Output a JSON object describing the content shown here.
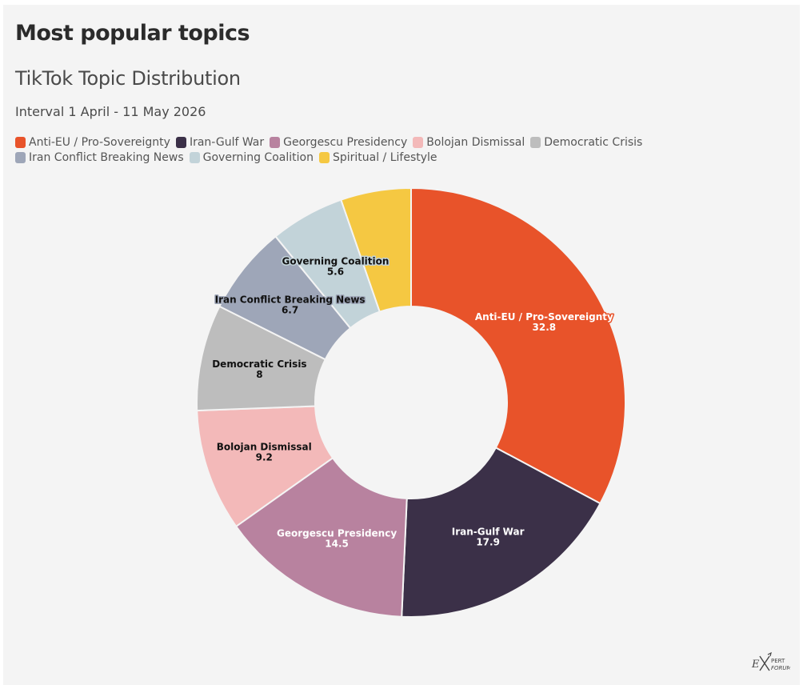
{
  "header": {
    "title": "Most popular topics",
    "subtitle": "TikTok Topic Distribution",
    "interval": "Interval 1 April - 11 May 2026"
  },
  "legend_position": "top-left",
  "chart_data": {
    "type": "pie",
    "donut": true,
    "title": "TikTok Topic Distribution",
    "slices": [
      {
        "name": "Anti-EU / Pro-Sovereignty",
        "value": 32.8,
        "value_label": "32.8",
        "color": "#e8532a",
        "text_color": "#ffffff",
        "stroke_color": "#e8532a"
      },
      {
        "name": "Iran-Gulf War",
        "value": 17.9,
        "value_label": "17.9",
        "color": "#3b3048",
        "text_color": "#ffffff",
        "stroke_color": "#3b3048"
      },
      {
        "name": "Georgescu Presidency",
        "value": 14.5,
        "value_label": "14.5",
        "color": "#b8829f",
        "text_color": "#ffffff",
        "stroke_color": "#b8829f"
      },
      {
        "name": "Bolojan Dismissal",
        "value": 9.2,
        "value_label": "9.2",
        "color": "#f3b9b9",
        "text_color": "#111111",
        "stroke_color": "#f3b9b9"
      },
      {
        "name": "Democratic Crisis",
        "value": 8,
        "value_label": "8",
        "color": "#bdbdbd",
        "text_color": "#111111",
        "stroke_color": "#bdbdbd"
      },
      {
        "name": "Iran Conflict Breaking News",
        "value": 6.7,
        "value_label": "6.7",
        "color": "#9ea6b8",
        "text_color": "#111111",
        "stroke_color": "#9ea6b8"
      },
      {
        "name": "Governing Coalition",
        "value": 5.6,
        "value_label": "5.6",
        "color": "#c2d3d9",
        "text_color": "#111111",
        "stroke_color": "#c2d3d9"
      },
      {
        "name": "Spiritual / Lifestyle",
        "value": 5.3,
        "value_label": "",
        "color": "#f5c842",
        "text_color": "#111111",
        "stroke_color": "#f5c842"
      }
    ]
  },
  "logo": {
    "text": "EXPERT FORUM",
    "icon": "expert-forum-logo"
  }
}
